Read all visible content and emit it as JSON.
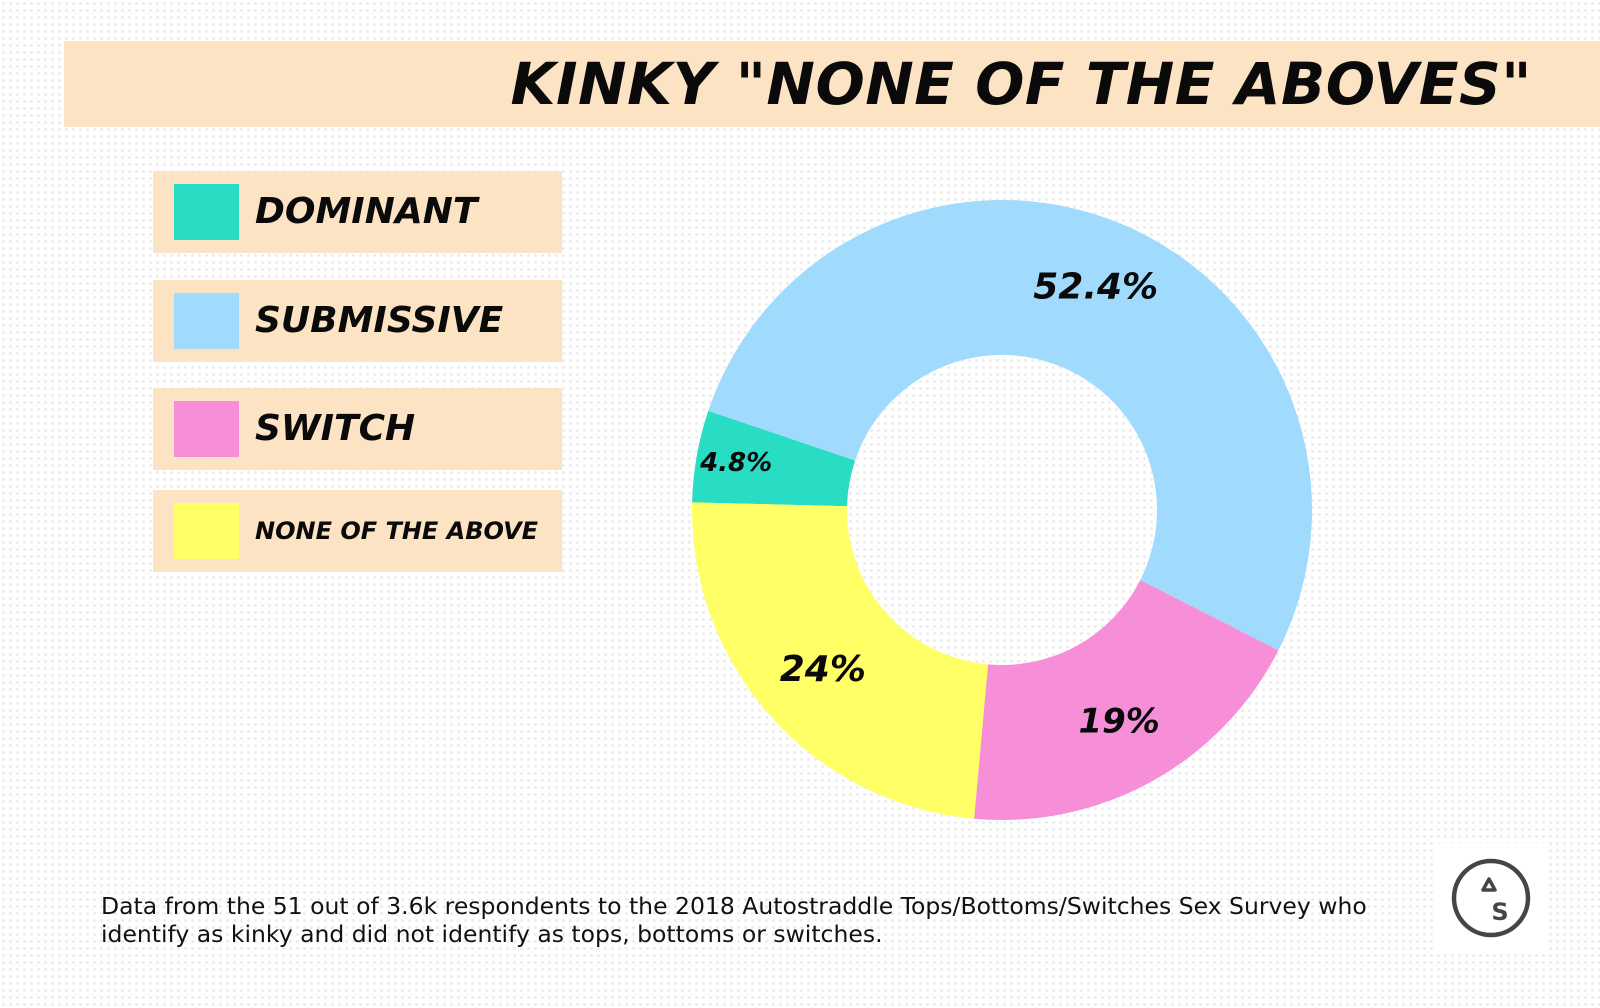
{
  "header": {
    "title": "KINKY \"NONE OF THE ABOVES\""
  },
  "chart_data": {
    "type": "pie",
    "variant": "donut",
    "title": "KINKY \"NONE OF THE ABOVES\"",
    "legend_position": "left",
    "categories": [
      "DOMINANT",
      "SUBMISSIVE",
      "SWITCH",
      "NONE OF THE ABOVE"
    ],
    "values": [
      4.8,
      52.4,
      19,
      24
    ],
    "value_labels": [
      "4.8%",
      "52.4%",
      "19%",
      "24%"
    ],
    "colors": [
      "#29dcc4",
      "#a0dafc",
      "#f78fd8",
      "#ffff66"
    ]
  },
  "footnote": "Data from the 51 out of 3.6k respondents to the 2018 Autostraddle Tops/Bottoms/Switches Sex Survey who identify as kinky and did not identify as tops, bottoms or switches.",
  "logo": {
    "text": "S",
    "icon": "autostraddle-logo-icon"
  }
}
